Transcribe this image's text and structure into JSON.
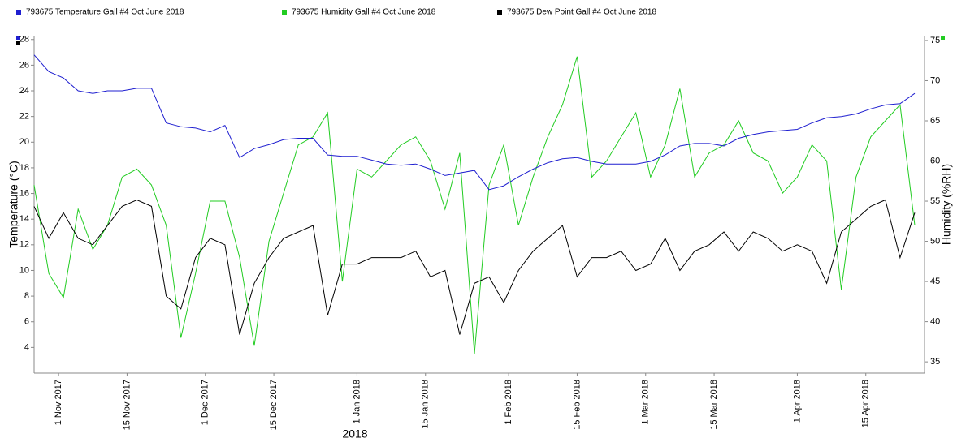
{
  "chart_data": {
    "type": "line",
    "x": [
      "2017-10-27",
      "2017-10-30",
      "2017-11-02",
      "2017-11-05",
      "2017-11-08",
      "2017-11-11",
      "2017-11-14",
      "2017-11-17",
      "2017-11-20",
      "2017-11-23",
      "2017-11-26",
      "2017-11-29",
      "2017-12-02",
      "2017-12-05",
      "2017-12-08",
      "2017-12-11",
      "2017-12-14",
      "2017-12-17",
      "2017-12-20",
      "2017-12-23",
      "2017-12-26",
      "2017-12-29",
      "2018-01-01",
      "2018-01-04",
      "2018-01-07",
      "2018-01-10",
      "2018-01-13",
      "2018-01-16",
      "2018-01-19",
      "2018-01-22",
      "2018-01-25",
      "2018-01-28",
      "2018-01-31",
      "2018-02-03",
      "2018-02-06",
      "2018-02-09",
      "2018-02-12",
      "2018-02-15",
      "2018-02-18",
      "2018-02-21",
      "2018-02-24",
      "2018-02-27",
      "2018-03-02",
      "2018-03-05",
      "2018-03-08",
      "2018-03-11",
      "2018-03-14",
      "2018-03-17",
      "2018-03-20",
      "2018-03-23",
      "2018-03-26",
      "2018-03-29",
      "2018-04-01",
      "2018-04-04",
      "2018-04-07",
      "2018-04-10",
      "2018-04-13",
      "2018-04-16",
      "2018-04-19",
      "2018-04-22",
      "2018-04-25"
    ],
    "series": [
      {
        "name": "793675  Temperature Gall #4 Oct June 2018",
        "color": "#1f1fd0",
        "axis": "y",
        "values": [
          26.8,
          25.5,
          25,
          24,
          23.8,
          24,
          24,
          24.2,
          24.2,
          21.5,
          21.2,
          21.1,
          20.8,
          21.3,
          18.8,
          19.5,
          19.8,
          20.2,
          20.3,
          20.3,
          19,
          18.9,
          18.9,
          18.6,
          18.3,
          18.2,
          18.3,
          17.9,
          17.4,
          17.6,
          17.8,
          16.3,
          16.6,
          17.3,
          17.9,
          18.4,
          18.7,
          18.8,
          18.5,
          18.3,
          18.3,
          18.3,
          18.5,
          19,
          19.7,
          19.9,
          19.9,
          19.7,
          20.3,
          20.6,
          20.8,
          20.9,
          21,
          21.5,
          21.9,
          22,
          22.2,
          22.6,
          22.9,
          23,
          23.8
        ]
      },
      {
        "name": "793675  Humidity Gall #4 Oct June 2018",
        "color": "#22cc22",
        "axis": "y2",
        "values": [
          57,
          46,
          43,
          54,
          49,
          52,
          58,
          59,
          57,
          52,
          38,
          46,
          55,
          55,
          48,
          37,
          50,
          56,
          62,
          63,
          66,
          45,
          59,
          58,
          60,
          62,
          63,
          60,
          54,
          61,
          36,
          57,
          62,
          52,
          58,
          63,
          67,
          73,
          58,
          60,
          63,
          66,
          58,
          62,
          69,
          58,
          61,
          62,
          65,
          61,
          60,
          56,
          58,
          62,
          60,
          44,
          58,
          63,
          65,
          67,
          52
        ]
      },
      {
        "name": "793675  Dew Point Gall #4 Oct June 2018",
        "color": "#000000",
        "axis": "y",
        "values": [
          15,
          12.5,
          14.5,
          12.5,
          12,
          13.5,
          15,
          15.5,
          15,
          8,
          7,
          11,
          12.5,
          12,
          5,
          9,
          11,
          12.5,
          13,
          13.5,
          6.5,
          10.5,
          10.5,
          11,
          11,
          11,
          11.5,
          9.5,
          10,
          5,
          9,
          9.5,
          7.5,
          10,
          11.5,
          12.5,
          13.5,
          9.5,
          11,
          11,
          11.5,
          10,
          10.5,
          12.5,
          10,
          11.5,
          12,
          13,
          11.5,
          13,
          12.5,
          11.5,
          12,
          11.5,
          9,
          13,
          14,
          15,
          15.5,
          11,
          14.5
        ]
      }
    ],
    "xlim": [
      "2017-10-27",
      "2018-04-27"
    ],
    "xticks": [
      {
        "value": "2017-11-01",
        "label": "1 Nov 2017"
      },
      {
        "value": "2017-11-15",
        "label": "15 Nov 2017"
      },
      {
        "value": "2017-12-01",
        "label": "1 Dec 2017"
      },
      {
        "value": "2017-12-15",
        "label": "15 Dec 2017"
      },
      {
        "value": "2018-01-01",
        "label": "1 Jan 2018"
      },
      {
        "value": "2018-01-15",
        "label": "15 Jan 2018"
      },
      {
        "value": "2018-02-01",
        "label": "1 Feb 2018"
      },
      {
        "value": "2018-02-15",
        "label": "15 Feb 2018"
      },
      {
        "value": "2018-03-01",
        "label": "1 Mar 2018"
      },
      {
        "value": "2018-03-15",
        "label": "15 Mar 2018"
      },
      {
        "value": "2018-04-01",
        "label": "1 Apr 2018"
      },
      {
        "value": "2018-04-15",
        "label": "15 Apr 2018"
      }
    ],
    "xlabel": "2018",
    "ylabel": "Temperature (°C)",
    "y2label": "Humidity (%RH)",
    "ylim": [
      2,
      28.3
    ],
    "yticks": [
      4,
      6,
      8,
      10,
      12,
      14,
      16,
      18,
      20,
      22,
      24,
      26,
      28
    ],
    "y2lim": [
      33.6,
      75.6
    ],
    "y2ticks": [
      35,
      40,
      45,
      50,
      55,
      60,
      65,
      70,
      75
    ],
    "grid": false
  }
}
